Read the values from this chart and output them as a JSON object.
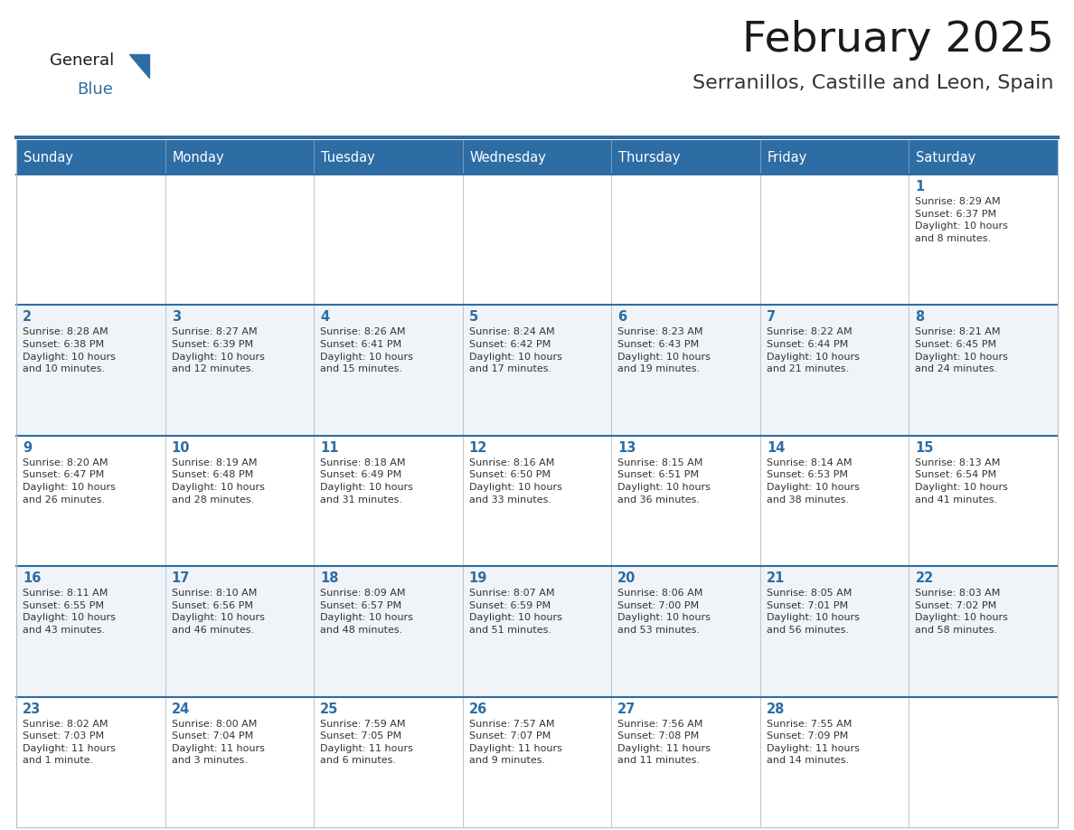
{
  "title": "February 2025",
  "subtitle": "Serranillos, Castille and Leon, Spain",
  "header_bg_color": "#2E6DA4",
  "header_text_color": "#FFFFFF",
  "day_names": [
    "Sunday",
    "Monday",
    "Tuesday",
    "Wednesday",
    "Thursday",
    "Friday",
    "Saturday"
  ],
  "cell_bg_row0": "#FFFFFF",
  "cell_bg_row1": "#F0F4F8",
  "cell_bg_row2": "#FFFFFF",
  "cell_bg_row3": "#F0F4F8",
  "cell_bg_row4": "#FFFFFF",
  "cell_border_color": "#B0BEC5",
  "week_line_color": "#2E6DA4",
  "date_color": "#2E6DA4",
  "info_color": "#333333",
  "title_color": "#1a1a1a",
  "subtitle_color": "#333333",
  "logo_general_color": "#1a1a1a",
  "logo_blue_color": "#2E6DA4",
  "weeks": [
    [
      {
        "day": null,
        "info": ""
      },
      {
        "day": null,
        "info": ""
      },
      {
        "day": null,
        "info": ""
      },
      {
        "day": null,
        "info": ""
      },
      {
        "day": null,
        "info": ""
      },
      {
        "day": null,
        "info": ""
      },
      {
        "day": 1,
        "info": "Sunrise: 8:29 AM\nSunset: 6:37 PM\nDaylight: 10 hours\nand 8 minutes."
      }
    ],
    [
      {
        "day": 2,
        "info": "Sunrise: 8:28 AM\nSunset: 6:38 PM\nDaylight: 10 hours\nand 10 minutes."
      },
      {
        "day": 3,
        "info": "Sunrise: 8:27 AM\nSunset: 6:39 PM\nDaylight: 10 hours\nand 12 minutes."
      },
      {
        "day": 4,
        "info": "Sunrise: 8:26 AM\nSunset: 6:41 PM\nDaylight: 10 hours\nand 15 minutes."
      },
      {
        "day": 5,
        "info": "Sunrise: 8:24 AM\nSunset: 6:42 PM\nDaylight: 10 hours\nand 17 minutes."
      },
      {
        "day": 6,
        "info": "Sunrise: 8:23 AM\nSunset: 6:43 PM\nDaylight: 10 hours\nand 19 minutes."
      },
      {
        "day": 7,
        "info": "Sunrise: 8:22 AM\nSunset: 6:44 PM\nDaylight: 10 hours\nand 21 minutes."
      },
      {
        "day": 8,
        "info": "Sunrise: 8:21 AM\nSunset: 6:45 PM\nDaylight: 10 hours\nand 24 minutes."
      }
    ],
    [
      {
        "day": 9,
        "info": "Sunrise: 8:20 AM\nSunset: 6:47 PM\nDaylight: 10 hours\nand 26 minutes."
      },
      {
        "day": 10,
        "info": "Sunrise: 8:19 AM\nSunset: 6:48 PM\nDaylight: 10 hours\nand 28 minutes."
      },
      {
        "day": 11,
        "info": "Sunrise: 8:18 AM\nSunset: 6:49 PM\nDaylight: 10 hours\nand 31 minutes."
      },
      {
        "day": 12,
        "info": "Sunrise: 8:16 AM\nSunset: 6:50 PM\nDaylight: 10 hours\nand 33 minutes."
      },
      {
        "day": 13,
        "info": "Sunrise: 8:15 AM\nSunset: 6:51 PM\nDaylight: 10 hours\nand 36 minutes."
      },
      {
        "day": 14,
        "info": "Sunrise: 8:14 AM\nSunset: 6:53 PM\nDaylight: 10 hours\nand 38 minutes."
      },
      {
        "day": 15,
        "info": "Sunrise: 8:13 AM\nSunset: 6:54 PM\nDaylight: 10 hours\nand 41 minutes."
      }
    ],
    [
      {
        "day": 16,
        "info": "Sunrise: 8:11 AM\nSunset: 6:55 PM\nDaylight: 10 hours\nand 43 minutes."
      },
      {
        "day": 17,
        "info": "Sunrise: 8:10 AM\nSunset: 6:56 PM\nDaylight: 10 hours\nand 46 minutes."
      },
      {
        "day": 18,
        "info": "Sunrise: 8:09 AM\nSunset: 6:57 PM\nDaylight: 10 hours\nand 48 minutes."
      },
      {
        "day": 19,
        "info": "Sunrise: 8:07 AM\nSunset: 6:59 PM\nDaylight: 10 hours\nand 51 minutes."
      },
      {
        "day": 20,
        "info": "Sunrise: 8:06 AM\nSunset: 7:00 PM\nDaylight: 10 hours\nand 53 minutes."
      },
      {
        "day": 21,
        "info": "Sunrise: 8:05 AM\nSunset: 7:01 PM\nDaylight: 10 hours\nand 56 minutes."
      },
      {
        "day": 22,
        "info": "Sunrise: 8:03 AM\nSunset: 7:02 PM\nDaylight: 10 hours\nand 58 minutes."
      }
    ],
    [
      {
        "day": 23,
        "info": "Sunrise: 8:02 AM\nSunset: 7:03 PM\nDaylight: 11 hours\nand 1 minute."
      },
      {
        "day": 24,
        "info": "Sunrise: 8:00 AM\nSunset: 7:04 PM\nDaylight: 11 hours\nand 3 minutes."
      },
      {
        "day": 25,
        "info": "Sunrise: 7:59 AM\nSunset: 7:05 PM\nDaylight: 11 hours\nand 6 minutes."
      },
      {
        "day": 26,
        "info": "Sunrise: 7:57 AM\nSunset: 7:07 PM\nDaylight: 11 hours\nand 9 minutes."
      },
      {
        "day": 27,
        "info": "Sunrise: 7:56 AM\nSunset: 7:08 PM\nDaylight: 11 hours\nand 11 minutes."
      },
      {
        "day": 28,
        "info": "Sunrise: 7:55 AM\nSunset: 7:09 PM\nDaylight: 11 hours\nand 14 minutes."
      },
      {
        "day": null,
        "info": ""
      }
    ]
  ]
}
